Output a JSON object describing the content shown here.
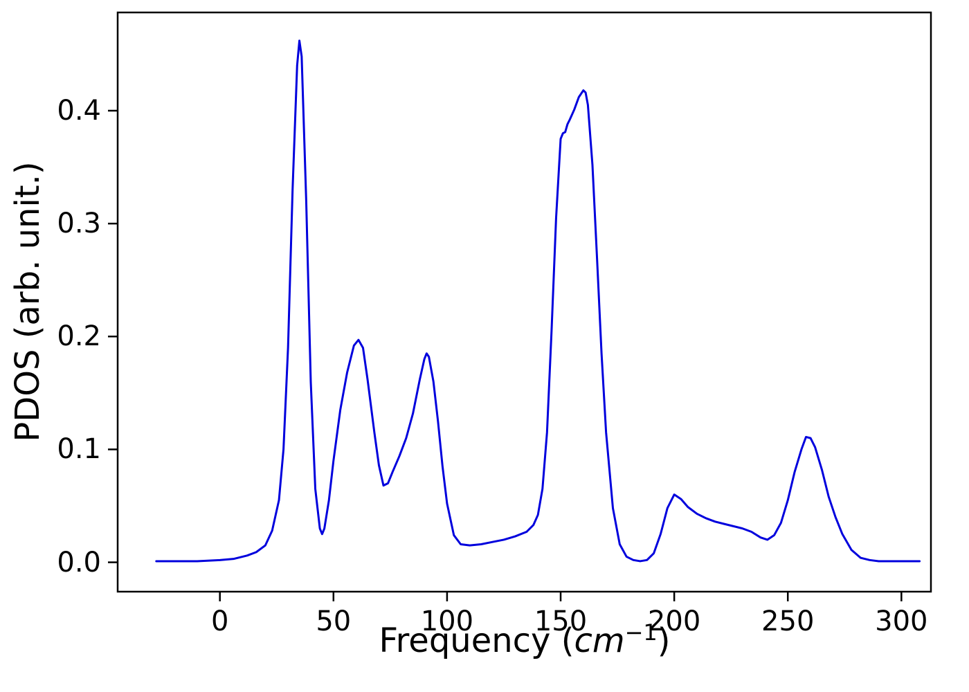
{
  "figure": {
    "background": "#ffffff",
    "axis_color": "#000000"
  },
  "chart_data": {
    "type": "line",
    "title": "",
    "xlabel_prefix": "Frequency (",
    "xlabel_italic": "cm",
    "xlabel_sup": "−1",
    "xlabel_suffix": ")",
    "xlabel_full": "Frequency (cm⁻¹)",
    "ylabel": "PDOS (arb. unit.)",
    "xlim": [
      -45,
      313
    ],
    "ylim": [
      -0.026,
      0.487
    ],
    "grid": false,
    "legend": "none",
    "xticks": {
      "values": [
        0,
        50,
        100,
        150,
        200,
        250,
        300
      ],
      "labels": [
        "0",
        "50",
        "100",
        "150",
        "200",
        "250",
        "300"
      ]
    },
    "yticks": {
      "values": [
        0.0,
        0.1,
        0.2,
        0.3,
        0.4
      ],
      "labels": [
        "0.0",
        "0.1",
        "0.2",
        "0.3",
        "0.4"
      ]
    },
    "series": [
      {
        "name": "PDOS",
        "color": "#0000dd",
        "line_width": 3,
        "x": [
          -28,
          -20,
          -10,
          0,
          6,
          12,
          16,
          20,
          23,
          26,
          28,
          30,
          32,
          34,
          35,
          36,
          38,
          40,
          42,
          44,
          45,
          46,
          48,
          50,
          53,
          56,
          59,
          61,
          63,
          65,
          68,
          70,
          72,
          74,
          76,
          79,
          82,
          85,
          88,
          90,
          91,
          92,
          94,
          96,
          98,
          100,
          103,
          106,
          110,
          115,
          120,
          125,
          130,
          135,
          138,
          140,
          142,
          144,
          146,
          148,
          150,
          151,
          152,
          153,
          154,
          156,
          158,
          160,
          161,
          162,
          164,
          166,
          168,
          170,
          173,
          176,
          179,
          182,
          185,
          188,
          191,
          194,
          197,
          200,
          203,
          206,
          210,
          214,
          218,
          222,
          226,
          230,
          234,
          238,
          241,
          244,
          247,
          250,
          253,
          256,
          258,
          260,
          262,
          265,
          268,
          271,
          274,
          278,
          282,
          286,
          290,
          295,
          300,
          305,
          308
        ],
        "y": [
          0.001,
          0.001,
          0.001,
          0.002,
          0.003,
          0.006,
          0.009,
          0.015,
          0.028,
          0.055,
          0.1,
          0.19,
          0.33,
          0.44,
          0.462,
          0.448,
          0.32,
          0.16,
          0.065,
          0.03,
          0.025,
          0.03,
          0.055,
          0.09,
          0.135,
          0.168,
          0.192,
          0.197,
          0.19,
          0.162,
          0.115,
          0.086,
          0.068,
          0.07,
          0.08,
          0.094,
          0.11,
          0.132,
          0.162,
          0.18,
          0.185,
          0.182,
          0.16,
          0.125,
          0.085,
          0.052,
          0.024,
          0.016,
          0.015,
          0.016,
          0.018,
          0.02,
          0.023,
          0.027,
          0.033,
          0.042,
          0.065,
          0.115,
          0.205,
          0.305,
          0.375,
          0.38,
          0.381,
          0.388,
          0.392,
          0.401,
          0.412,
          0.418,
          0.416,
          0.405,
          0.352,
          0.27,
          0.185,
          0.115,
          0.048,
          0.016,
          0.005,
          0.002,
          0.001,
          0.002,
          0.008,
          0.025,
          0.048,
          0.06,
          0.056,
          0.049,
          0.043,
          0.039,
          0.036,
          0.034,
          0.032,
          0.03,
          0.027,
          0.022,
          0.02,
          0.024,
          0.035,
          0.055,
          0.08,
          0.1,
          0.111,
          0.11,
          0.102,
          0.082,
          0.058,
          0.04,
          0.025,
          0.011,
          0.004,
          0.002,
          0.001,
          0.001,
          0.001,
          0.001,
          0.001
        ]
      }
    ]
  }
}
